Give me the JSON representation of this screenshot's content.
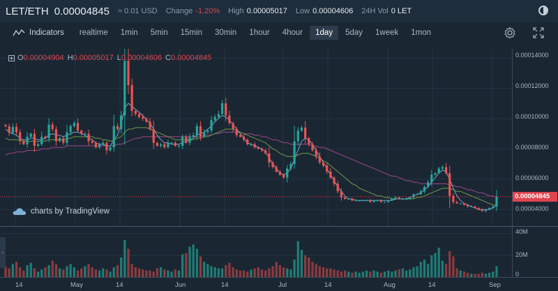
{
  "header": {
    "pair": "LET/ETH",
    "price": "0.00004845",
    "usd": "≈ 0.01 USD",
    "change_label": "Change",
    "change_value": "-1.20%",
    "high_label": "High",
    "high_value": "0.00005017",
    "low_label": "Low",
    "low_value": "0.00004606",
    "vol_label": "24H Vol",
    "vol_value": "0 LET"
  },
  "toolbar": {
    "indicators_label": "Indicators",
    "timeframes": [
      "realtime",
      "1min",
      "5min",
      "15min",
      "30min",
      "1hour",
      "4hour",
      "1day",
      "5day",
      "1week",
      "1mon"
    ],
    "active_timeframe": "1day"
  },
  "ohlc": {
    "o_key": "O",
    "o_val": "0.00004904",
    "h_key": "H",
    "h_val": "0.00005017",
    "l_key": "L",
    "l_val": "0.00004606",
    "c_key": "C",
    "c_val": "0.00004845"
  },
  "price_axis": {
    "labels": [
      "0.00014000",
      "0.00012000",
      "0.00010000",
      "0.00008000",
      "0.00006000",
      "0.00004000"
    ],
    "last_price": "0.00004845"
  },
  "volume_axis": {
    "labels": [
      "40M",
      "20M",
      "0"
    ]
  },
  "time_axis": {
    "labels": [
      "14",
      "May",
      "14",
      "Jun",
      "14",
      "Jul",
      "14",
      "Aug",
      "14",
      "Sep"
    ]
  },
  "watermark": "charts by TradingView",
  "colors": {
    "up": "#26a69a",
    "down": "#ef5350",
    "ma_fast": "#7aa3d0",
    "ma_mid": "#6f9a48",
    "ma_slow": "#a0468a",
    "last_price": "#e0444f"
  },
  "chart_data": {
    "type": "candlestick",
    "close": [
      9.48e-05,
      9.05e-05,
      9.45e-05,
      9.1e-05,
      8.5e-05,
      8.3e-05,
      8.8e-05,
      9e-05,
      8.2e-05,
      8.3e-05,
      8.8e-05,
      8.7e-05,
      9.6e-05,
      9.3e-05,
      8.5e-05,
      8.7e-05,
      8.4e-05,
      9.1e-05,
      9.5e-05,
      9.7e-05,
      9.2e-05,
      9e-05,
      9e-05,
      8.5e-05,
      8.4e-05,
      8.1e-05,
      8.3e-05,
      8.4e-05,
      7.9e-05,
      8.1e-05,
      9.5e-05,
      9.3e-05,
      0.000102,
      0.000138,
      0.000122,
      0.000105,
      0.000103,
      0.000101,
      0.0001,
      9.8e-05,
      9.3e-05,
      8.4e-05,
      8.2e-05,
      8.3e-05,
      8.1e-05,
      8.4e-05,
      8.4e-05,
      8.2e-05,
      8.2e-05,
      8.8e-05,
      8.4e-05,
      8.8e-05,
      8.9e-05,
      9.5e-05,
      8.8e-05,
      9.1e-05,
      9.2e-05,
      9.9e-05,
      0.000101,
      0.000103,
      0.00011,
      0.000102,
      9.7e-05,
      9.3e-05,
      8.9e-05,
      8.8e-05,
      8.6e-05,
      8.3e-05,
      8.3e-05,
      8.1e-05,
      8e-05,
      7.9e-05,
      7.7e-05,
      7.1e-05,
      6.8e-05,
      6.5e-05,
      6.3e-05,
      6.1e-05,
      6.7e-05,
      7e-05,
      8.5e-05,
      9.2e-05,
      9.4e-05,
      8.7e-05,
      8.3e-05,
      7.9e-05,
      7.5e-05,
      7.1e-05,
      6.9e-05,
      6.5e-05,
      6.1e-05,
      5.7e-05,
      5.2e-05,
      4.8e-05,
      4.7e-05,
      4.7e-05,
      4.6e-05,
      4.6e-05,
      4.6e-05,
      4.6e-05,
      4.6e-05,
      4.5e-05,
      4.6e-05,
      4.6e-05,
      4.5e-05,
      4.5e-05,
      4.6e-05,
      4.7e-05,
      4.8e-05,
      4.7e-05,
      4.7e-05,
      4.7e-05,
      4.8e-05,
      5e-05,
      5e-05,
      5.2e-05,
      5.5e-05,
      5.8e-05,
      6.3e-05,
      6.4e-05,
      6.7e-05,
      6.8e-05,
      6.4e-05,
      4.9e-05,
      4.5e-05,
      4.4e-05,
      4.4e-05,
      4.3e-05,
      4.2e-05,
      4.2e-05,
      4.1e-05,
      4e-05,
      3.9e-05,
      4e-05,
      4.1e-05,
      4.2e-05,
      4.85e-05
    ],
    "ma_fast": [
      9.3e-05,
      9.1e-05,
      9e-05,
      8.9e-05,
      8.7e-05,
      8.6e-05,
      8.6e-05,
      8.7e-05,
      8.7e-05,
      8.6e-05,
      8.6e-05,
      8.7e-05,
      8.9e-05,
      9e-05,
      8.9e-05,
      8.9e-05,
      8.8e-05,
      8.9e-05,
      9e-05,
      9.1e-05,
      9.1e-05,
      9e-05,
      8.9e-05,
      8.7e-05,
      8.6e-05,
      8.4e-05,
      8.3e-05,
      8.3e-05,
      8.2e-05,
      8.2e-05,
      8.6e-05,
      8.9e-05,
      9.6e-05,
      0.000107,
      0.00011,
      0.000108,
      0.000106,
      0.000104,
      0.000102,
      9.9e-05,
      9.7e-05,
      9.3e-05,
      8.9e-05,
      8.6e-05,
      8.4e-05,
      8.4e-05,
      8.3e-05,
      8.3e-05,
      8.3e-05,
      8.4e-05,
      8.5e-05,
      8.6e-05,
      8.7e-05,
      8.9e-05,
      9e-05,
      9.1e-05,
      9.3e-05,
      9.5e-05,
      9.8e-05,
      0.0001,
      0.000102,
      0.000101,
      9.9e-05,
      9.6e-05,
      9.3e-05,
      9e-05,
      8.7e-05,
      8.4e-05,
      8.3e-05,
      8.2e-05,
      8.1e-05,
      8e-05,
      7.8e-05,
      7.4e-05,
      7e-05,
      6.7e-05,
      6.4e-05,
      6.3e-05,
      6.4e-05,
      6.7e-05,
      7.3e-05,
      7.9e-05,
      8.5e-05,
      8.7e-05,
      8.6e-05,
      8.3e-05,
      7.9e-05,
      7.5e-05,
      7.1e-05,
      6.7e-05,
      6.3e-05,
      5.9e-05,
      5.5e-05,
      5.2e-05,
      4.9e-05,
      4.7e-05,
      4.7e-05,
      4.6e-05,
      4.6e-05,
      4.6e-05,
      4.6e-05,
      4.6e-05,
      4.6e-05,
      4.6e-05,
      4.6e-05,
      4.6e-05,
      4.6e-05,
      4.6e-05,
      4.7e-05,
      4.7e-05,
      4.7e-05,
      4.7e-05,
      4.8e-05,
      4.9e-05,
      5e-05,
      5.1e-05,
      5.3e-05,
      5.5e-05,
      5.8e-05,
      6.1e-05,
      6.4e-05,
      6.6e-05,
      6.5e-05,
      6e-05,
      5.4e-05,
      4.9e-05,
      4.6e-05,
      4.4e-05,
      4.3e-05,
      4.2e-05,
      4.1e-05,
      4e-05,
      4e-05,
      4e-05,
      4e-05,
      4.1e-05,
      4.3e-05
    ],
    "ma_mid": [
      8.7e-05,
      8.6e-05,
      8.6e-05,
      8.6e-05,
      8.6e-05,
      8.5e-05,
      8.5e-05,
      8.5e-05,
      8.5e-05,
      8.5e-05,
      8.5e-05,
      8.5e-05,
      8.6e-05,
      8.6e-05,
      8.6e-05,
      8.6e-05,
      8.6e-05,
      8.7e-05,
      8.7e-05,
      8.8e-05,
      8.8e-05,
      8.8e-05,
      8.8e-05,
      8.8e-05,
      8.8e-05,
      8.7e-05,
      8.7e-05,
      8.6e-05,
      8.6e-05,
      8.5e-05,
      8.6e-05,
      8.7e-05,
      8.8e-05,
      9.1e-05,
      9.3e-05,
      9.3e-05,
      9.4e-05,
      9.4e-05,
      9.4e-05,
      9.4e-05,
      9.3e-05,
      9.2e-05,
      9.1e-05,
      9e-05,
      8.9e-05,
      8.8e-05,
      8.7e-05,
      8.6e-05,
      8.6e-05,
      8.6e-05,
      8.6e-05,
      8.6e-05,
      8.6e-05,
      8.7e-05,
      8.7e-05,
      8.8e-05,
      8.8e-05,
      8.9e-05,
      9e-05,
      9.1e-05,
      9.2e-05,
      9.3e-05,
      9.3e-05,
      9.3e-05,
      9.2e-05,
      9.1e-05,
      9e-05,
      8.9e-05,
      8.8e-05,
      8.7e-05,
      8.6e-05,
      8.5e-05,
      8.4e-05,
      8.2e-05,
      8e-05,
      7.9e-05,
      7.7e-05,
      7.6e-05,
      7.5e-05,
      7.5e-05,
      7.5e-05,
      7.6e-05,
      7.7e-05,
      7.7e-05,
      7.7e-05,
      7.6e-05,
      7.5e-05,
      7.4e-05,
      7.2e-05,
      7.1e-05,
      6.9e-05,
      6.7e-05,
      6.5e-05,
      6.3e-05,
      6.1e-05,
      5.9e-05,
      5.7e-05,
      5.6e-05,
      5.4e-05,
      5.3e-05,
      5.2e-05,
      5.1e-05,
      5e-05,
      4.9e-05,
      4.9e-05,
      4.8e-05,
      4.8e-05,
      4.7e-05,
      4.7e-05,
      4.7e-05,
      4.7e-05,
      4.7e-05,
      4.7e-05,
      4.7e-05,
      4.8e-05,
      4.8e-05,
      4.9e-05,
      5e-05,
      5.1e-05,
      5.2e-05,
      5.3e-05,
      5.4e-05,
      5.4e-05,
      5.4e-05,
      5.3e-05,
      5.2e-05,
      5.2e-05,
      5.1e-05,
      5e-05,
      4.9e-05,
      4.8e-05,
      4.7e-05,
      4.6e-05,
      4.5e-05,
      4.4e-05,
      4.3e-05,
      4.3e-05
    ],
    "ma_slow": [
      7.6e-05,
      7.7e-05,
      7.7e-05,
      7.8e-05,
      7.8e-05,
      7.8e-05,
      7.9e-05,
      7.9e-05,
      7.9e-05,
      7.9e-05,
      8e-05,
      8e-05,
      8e-05,
      8.1e-05,
      8.1e-05,
      8.1e-05,
      8.1e-05,
      8.2e-05,
      8.2e-05,
      8.2e-05,
      8.2e-05,
      8.2e-05,
      8.2e-05,
      8.2e-05,
      8.2e-05,
      8.2e-05,
      8.2e-05,
      8.2e-05,
      8.2e-05,
      8.2e-05,
      8.2e-05,
      8.3e-05,
      8.3e-05,
      8.4e-05,
      8.5e-05,
      8.6e-05,
      8.7e-05,
      8.7e-05,
      8.8e-05,
      8.8e-05,
      8.8e-05,
      8.8e-05,
      8.8e-05,
      8.8e-05,
      8.8e-05,
      8.8e-05,
      8.8e-05,
      8.8e-05,
      8.8e-05,
      8.8e-05,
      8.8e-05,
      8.8e-05,
      8.8e-05,
      8.8e-05,
      8.8e-05,
      8.9e-05,
      8.9e-05,
      8.9e-05,
      9e-05,
      9e-05,
      9.1e-05,
      9.1e-05,
      9.1e-05,
      9.1e-05,
      9.1e-05,
      9.1e-05,
      9e-05,
      9e-05,
      9e-05,
      8.9e-05,
      8.9e-05,
      8.8e-05,
      8.8e-05,
      8.7e-05,
      8.6e-05,
      8.6e-05,
      8.5e-05,
      8.4e-05,
      8.4e-05,
      8.3e-05,
      8.3e-05,
      8.3e-05,
      8.3e-05,
      8.3e-05,
      8.3e-05,
      8.2e-05,
      8.2e-05,
      8.1e-05,
      8.1e-05,
      8e-05,
      7.9e-05,
      7.8e-05,
      7.7e-05,
      7.6e-05,
      7.5e-05,
      7.4e-05,
      7.3e-05,
      7.2e-05,
      7.1e-05,
      7e-05,
      6.9e-05,
      6.8e-05,
      6.7e-05,
      6.6e-05,
      6.5e-05,
      6.4e-05,
      6.3e-05,
      6.2e-05,
      6.2e-05,
      6.1e-05,
      6e-05,
      5.9e-05,
      5.9e-05,
      5.8e-05,
      5.8e-05,
      5.7e-05,
      5.7e-05,
      5.7e-05,
      5.7e-05,
      5.7e-05,
      5.7e-05,
      5.7e-05,
      5.7e-05,
      5.6e-05,
      5.6e-05,
      5.5e-05,
      5.5e-05,
      5.4e-05,
      5.3e-05,
      5.3e-05,
      5.2e-05,
      5.1e-05,
      5.1e-05,
      5e-05,
      4.9e-05,
      4.9e-05,
      4.8e-05
    ],
    "volume": [
      10,
      8,
      12,
      14,
      9,
      6,
      11,
      13,
      8,
      5,
      7,
      9,
      11,
      15,
      12,
      8,
      7,
      10,
      12,
      9,
      6,
      8,
      10,
      12,
      9,
      7,
      6,
      8,
      7,
      5,
      9,
      11,
      18,
      34,
      26,
      12,
      9,
      8,
      7,
      6,
      6,
      5,
      8,
      9,
      7,
      6,
      5,
      7,
      6,
      21,
      22,
      28,
      30,
      26,
      19,
      14,
      12,
      10,
      9,
      8,
      8,
      11,
      13,
      9,
      7,
      6,
      6,
      5,
      7,
      8,
      9,
      7,
      6,
      8,
      10,
      14,
      11,
      9,
      8,
      7,
      16,
      33,
      25,
      20,
      18,
      14,
      12,
      10,
      9,
      8,
      8,
      7,
      6,
      5,
      6,
      5,
      4,
      5,
      4,
      5,
      6,
      5,
      6,
      5,
      4,
      5,
      6,
      5,
      6,
      7,
      8,
      6,
      7,
      9,
      10,
      14,
      16,
      12,
      20,
      22,
      27,
      15,
      12,
      24,
      19,
      8,
      6,
      5,
      4,
      3,
      3,
      3,
      4,
      3,
      4,
      5,
      10
    ],
    "price_range": [
      3e-05,
      0.000145
    ],
    "volume_range": [
      0,
      45
    ],
    "volume_unit": "M"
  }
}
